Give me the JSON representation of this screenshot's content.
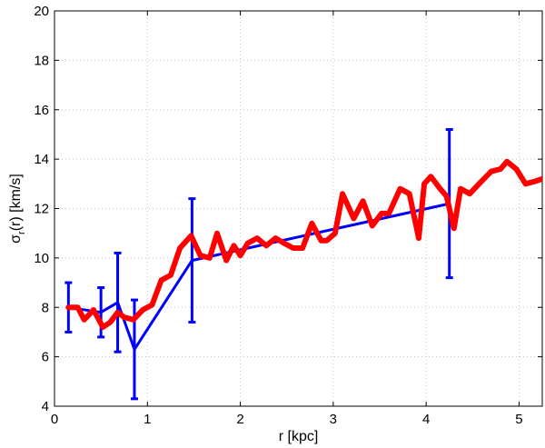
{
  "chart_data": {
    "type": "line",
    "xlabel": "r [kpc]",
    "ylabel": {
      "main": "σ",
      "sub": "r",
      "rest": "(r) [km/s]"
    },
    "xlim": [
      0,
      5.25
    ],
    "ylim": [
      4,
      20
    ],
    "x_ticks": [
      0,
      1,
      2,
      3,
      4,
      5
    ],
    "y_ticks": [
      4,
      6,
      8,
      10,
      12,
      14,
      16,
      18,
      20
    ],
    "x_tick_labels": [
      "0",
      "1",
      "2",
      "3",
      "4",
      "5"
    ],
    "y_tick_labels": [
      "4",
      "6",
      "8",
      "10",
      "12",
      "14",
      "16",
      "18",
      "20"
    ],
    "grid": true,
    "series": [
      {
        "color": "#0000ff",
        "style": "line-with-errorbars",
        "x": [
          0.15,
          0.5,
          0.68,
          0.86,
          1.48,
          4.25
        ],
        "y": [
          8.0,
          7.8,
          8.2,
          6.3,
          9.9,
          12.2
        ],
        "err_low": [
          7.0,
          6.8,
          6.2,
          4.3,
          7.4,
          9.2
        ],
        "err_high": [
          9.0,
          8.8,
          10.2,
          8.3,
          12.4,
          15.2
        ]
      },
      {
        "color": "#ff0000",
        "style": "thick-line",
        "x": [
          0.15,
          0.25,
          0.32,
          0.42,
          0.52,
          0.6,
          0.68,
          0.75,
          0.85,
          0.95,
          1.05,
          1.15,
          1.25,
          1.35,
          1.47,
          1.57,
          1.67,
          1.75,
          1.85,
          1.93,
          2.0,
          2.08,
          2.18,
          2.28,
          2.38,
          2.47,
          2.57,
          2.67,
          2.77,
          2.87,
          2.93,
          3.02,
          3.1,
          3.22,
          3.32,
          3.42,
          3.52,
          3.6,
          3.72,
          3.82,
          3.92,
          3.98,
          4.05,
          4.15,
          4.22,
          4.3,
          4.37,
          4.47,
          4.57,
          4.7,
          4.8,
          4.87,
          4.97,
          5.07,
          5.17,
          5.25
        ],
        "y": [
          8.0,
          8.0,
          7.5,
          7.9,
          7.2,
          7.4,
          7.8,
          7.6,
          7.5,
          7.9,
          8.1,
          9.1,
          9.3,
          10.4,
          10.9,
          10.1,
          10.0,
          11.0,
          9.9,
          10.5,
          10.1,
          10.6,
          10.8,
          10.5,
          10.8,
          10.6,
          10.4,
          10.4,
          11.4,
          10.7,
          10.7,
          11.0,
          12.6,
          11.6,
          12.3,
          11.3,
          11.8,
          11.8,
          12.8,
          12.6,
          10.8,
          13.0,
          13.3,
          12.8,
          12.5,
          11.2,
          12.8,
          12.6,
          13.0,
          13.5,
          13.6,
          13.9,
          13.6,
          13.0,
          13.1,
          13.2
        ]
      }
    ]
  }
}
